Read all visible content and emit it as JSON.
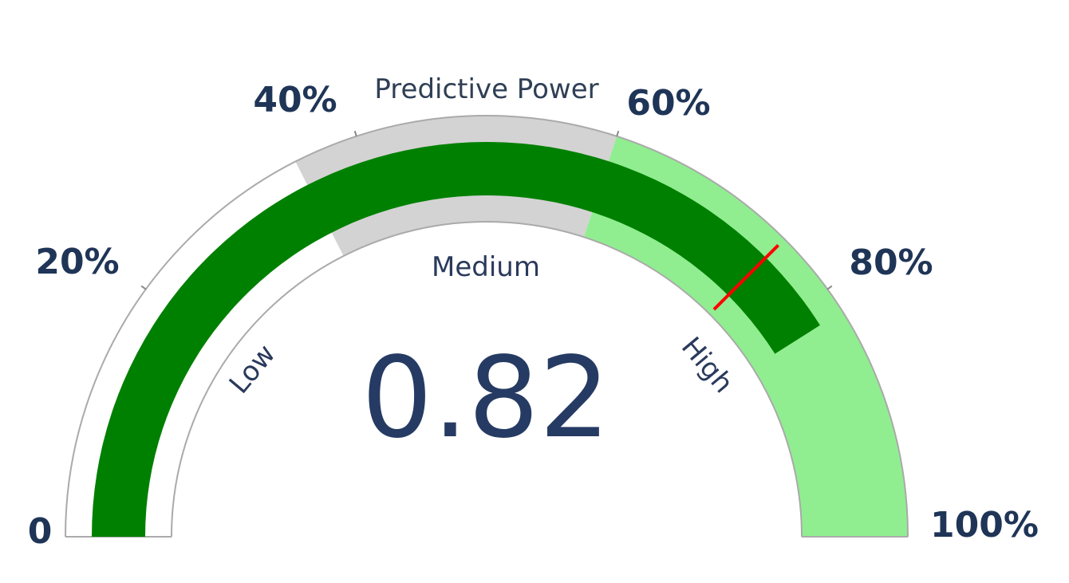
{
  "chart_data": {
    "type": "gauge",
    "title": "Predictive Power",
    "value": 0.82,
    "value_label": "0.82",
    "target": 0.75,
    "range": [
      0,
      1
    ],
    "tick_labels": [
      "0",
      "20%",
      "40%",
      "60%",
      "80%",
      "100%"
    ],
    "tick_values": [
      0,
      0.2,
      0.4,
      0.6,
      0.8,
      1.0
    ],
    "bands": [
      {
        "name": "Low",
        "from": 0.0,
        "to": 0.35,
        "color": "#ffffff"
      },
      {
        "name": "Medium",
        "from": 0.35,
        "to": 0.6,
        "color": "#d3d3d3"
      },
      {
        "name": "High",
        "from": 0.6,
        "to": 1.0,
        "color": "#90ee90"
      }
    ],
    "colors": {
      "bar": "#008000",
      "target_marker": "#ff0000",
      "text": "#1f3557",
      "outline": "#aaaaaa"
    }
  }
}
